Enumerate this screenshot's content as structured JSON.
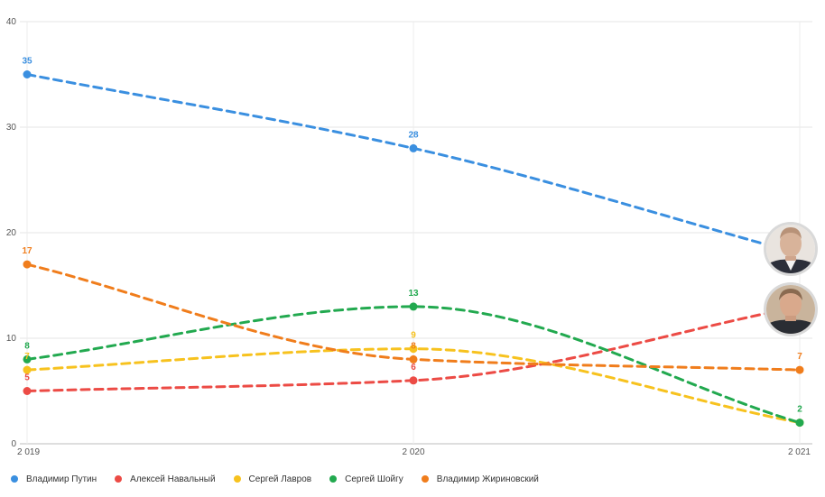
{
  "chart_data": {
    "type": "line",
    "title": "",
    "xlabel": "",
    "ylabel": "",
    "x": [
      "2 019",
      "2 020",
      "2 021"
    ],
    "ylim": [
      0,
      40
    ],
    "yticks": [
      "0",
      "10",
      "20",
      "30",
      "40"
    ],
    "grid": true,
    "legend_position": "bottom-left",
    "series": [
      {
        "name": "Владимир Путин",
        "color": "#3a8fe0",
        "values": [
          35,
          28,
          18
        ],
        "labels": [
          "35",
          "28",
          ""
        ],
        "photo_icon": "portrait-photo-icon"
      },
      {
        "name": "Алексей Навальный",
        "color": "#ec4b45",
        "values": [
          5,
          6,
          13
        ],
        "labels": [
          "5",
          "6",
          ""
        ],
        "photo_icon": "portrait-photo-icon"
      },
      {
        "name": "Сергей Лавров",
        "color": "#f7c21e",
        "values": [
          7,
          9,
          2
        ],
        "labels": [
          "7",
          "9",
          ""
        ]
      },
      {
        "name": "Сергей Шойгу",
        "color": "#22a94f",
        "values": [
          8,
          13,
          2
        ],
        "labels": [
          "8",
          "13",
          "2"
        ]
      },
      {
        "name": "Владимир Жириновский",
        "color": "#f07d1c",
        "values": [
          17,
          8,
          7
        ],
        "labels": [
          "17",
          "8",
          "7"
        ]
      }
    ]
  }
}
